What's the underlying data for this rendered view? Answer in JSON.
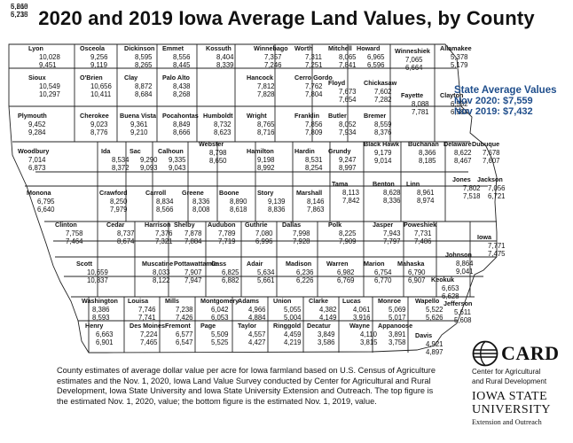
{
  "title": "2020 and 2019 Iowa Average Land Values, by County",
  "state_average": {
    "heading": "State Average Values",
    "nov_2020": "Nov 2020: $7,559",
    "nov_2019": "Nov 2019: $7,432"
  },
  "footnote": "County estimates of average dollar value per acre for Iowa farmland based on U.S. Census of Agriculture estimates and the Nov. 1, 2020, Iowa Land Value Survey conducted by Center for Agricultural and Rural Development, Iowa State University and Iowa State University Extension and Outreach. The top figure is the estimated Nov. 1, 2020, value; the bottom figure is the estimated Nov. 1, 2019, value.",
  "card_logo": {
    "name": "CARD",
    "line1": "Center for Agricultural",
    "line2": "and Rural Development",
    "mark_icon": "card-globe-icon"
  },
  "isu_logo": {
    "line1": "IOWA STATE",
    "line2": "UNIVERSITY",
    "line3": "Extension and Outreach"
  },
  "counties": [
    {
      "name": "Lyon",
      "v2020": "10,028",
      "v2019": "9,451"
    },
    {
      "name": "Osceola",
      "v2020": "9,256",
      "v2019": "9,119"
    },
    {
      "name": "Dickinson",
      "v2020": "8,595",
      "v2019": "8,265"
    },
    {
      "name": "Emmet",
      "v2020": "8,556",
      "v2019": "8,445"
    },
    {
      "name": "Kossuth",
      "v2020": "8,404",
      "v2019": "8,339"
    },
    {
      "name": "Winnebago",
      "v2020": "7,357",
      "v2019": "7,246"
    },
    {
      "name": "Worth",
      "v2020": "7,311",
      "v2019": "7,251"
    },
    {
      "name": "Mitchell",
      "v2020": "8,065",
      "v2019": "7,841"
    },
    {
      "name": "Howard",
      "v2020": "6,965",
      "v2019": "6,596"
    },
    {
      "name": "Winneshiek",
      "v2020": "7,065",
      "v2019": "6,664"
    },
    {
      "name": "Allamakee",
      "v2020": "5,378",
      "v2019": "5,179"
    },
    {
      "name": "Sioux",
      "v2020": "10,549",
      "v2019": "10,297"
    },
    {
      "name": "O'Brien",
      "v2020": "10,656",
      "v2019": "10,411"
    },
    {
      "name": "Clay",
      "v2020": "8,872",
      "v2019": "8,684"
    },
    {
      "name": "Palo Alto",
      "v2020": "8,438",
      "v2019": "8,268"
    },
    {
      "name": "Hancock",
      "v2020": "7,812",
      "v2019": "7,828"
    },
    {
      "name": "Cerro Gordo",
      "v2020": "7,762",
      "v2019": "7,804"
    },
    {
      "name": "Floyd",
      "v2020": "7,673",
      "v2019": "7,654"
    },
    {
      "name": "Chickasaw",
      "v2020": "7,602",
      "v2019": "7,282"
    },
    {
      "name": "Fayette",
      "v2020": "8,088",
      "v2019": "7,781"
    },
    {
      "name": "Clayton",
      "v2020": "6,532",
      "v2019": "6,584"
    },
    {
      "name": "Plymouth",
      "v2020": "9,452",
      "v2019": "9,284"
    },
    {
      "name": "Cherokee",
      "v2020": "9,023",
      "v2019": "8,776"
    },
    {
      "name": "Buena Vista",
      "v2020": "9,361",
      "v2019": "9,210"
    },
    {
      "name": "Pocahontas",
      "v2020": "8,849",
      "v2019": "8,666"
    },
    {
      "name": "Humboldt",
      "v2020": "8,732",
      "v2019": "8,623"
    },
    {
      "name": "Wright",
      "v2020": "8,765",
      "v2019": "8,716"
    },
    {
      "name": "Franklin",
      "v2020": "7,856",
      "v2019": "7,809"
    },
    {
      "name": "Butler",
      "v2020": "8,052",
      "v2019": "7,934"
    },
    {
      "name": "Bremer",
      "v2020": "8,559",
      "v2019": "8,376"
    },
    {
      "name": "Woodbury",
      "v2020": "7,014",
      "v2019": "6,873"
    },
    {
      "name": "Ida",
      "v2020": "8,534",
      "v2019": "8,372"
    },
    {
      "name": "Sac",
      "v2020": "9,290",
      "v2019": "9,093"
    },
    {
      "name": "Calhoun",
      "v2020": "9,335",
      "v2019": "9,043"
    },
    {
      "name": "Webster",
      "v2020": "8,798",
      "v2019": "8,650"
    },
    {
      "name": "Hamilton",
      "v2020": "9,198",
      "v2019": "8,992"
    },
    {
      "name": "Hardin",
      "v2020": "8,531",
      "v2019": "8,254"
    },
    {
      "name": "Grundy",
      "v2020": "9,247",
      "v2019": "8,997"
    },
    {
      "name": "Black Hawk",
      "v2020": "9,179",
      "v2019": "9,014"
    },
    {
      "name": "Buchanan",
      "v2020": "8,366",
      "v2019": "8,185"
    },
    {
      "name": "Delaware",
      "v2020": "8,622",
      "v2019": "8,467"
    },
    {
      "name": "Dubuque",
      "v2020": "7,678",
      "v2019": "7,607"
    },
    {
      "name": "Monona",
      "v2020": "6,795",
      "v2019": "6,640"
    },
    {
      "name": "Crawford",
      "v2020": "8,250",
      "v2019": "7,979"
    },
    {
      "name": "Carroll",
      "v2020": "8,834",
      "v2019": "8,566"
    },
    {
      "name": "Greene",
      "v2020": "8,336",
      "v2019": "8,008"
    },
    {
      "name": "Boone",
      "v2020": "8,890",
      "v2019": "8,618"
    },
    {
      "name": "Story",
      "v2020": "9,139",
      "v2019": "8,836"
    },
    {
      "name": "Marshall",
      "v2020": "8,146",
      "v2019": "7,863"
    },
    {
      "name": "Tama",
      "v2020": "8,113",
      "v2019": "7,842"
    },
    {
      "name": "Benton",
      "v2020": "8,628",
      "v2019": "8,336"
    },
    {
      "name": "Linn",
      "v2020": "8,961",
      "v2019": "8,974"
    },
    {
      "name": "Jones",
      "v2020": "7,802",
      "v2019": "7,518"
    },
    {
      "name": "Jackson",
      "v2020": "7,056",
      "v2019": "6,721"
    },
    {
      "name": "Clinton",
      "v2020": "7,758",
      "v2019": "7,464"
    },
    {
      "name": "Cedar",
      "v2020": "8,737",
      "v2019": "8,674"
    },
    {
      "name": "Harrison",
      "v2020": "7,376",
      "v2019": "7,321"
    },
    {
      "name": "Shelby",
      "v2020": "7,878",
      "v2019": "7,884"
    },
    {
      "name": "Audubon",
      "v2020": "7,789",
      "v2019": "7,719"
    },
    {
      "name": "Guthrie",
      "v2020": "7,080",
      "v2019": "6,996"
    },
    {
      "name": "Dallas",
      "v2020": "7,998",
      "v2019": "7,928"
    },
    {
      "name": "Polk",
      "v2020": "8,225",
      "v2019": "7,909"
    },
    {
      "name": "Jasper",
      "v2020": "7,943",
      "v2019": "7,797"
    },
    {
      "name": "Poweshiek",
      "v2020": "7,731",
      "v2019": "7,486"
    },
    {
      "name": "Iowa",
      "v2020": "7,771",
      "v2019": "7,475"
    },
    {
      "name": "Johnson",
      "v2020": "8,864",
      "v2019": "9,041"
    },
    {
      "name": "Scott",
      "v2020": "10,659",
      "v2019": "10,837"
    },
    {
      "name": "Muscatine",
      "v2020": "8,033",
      "v2019": "8,122"
    },
    {
      "name": "Pottawattamie",
      "v2020": "7,907",
      "v2019": "7,947"
    },
    {
      "name": "Cass",
      "v2020": "6,825",
      "v2019": "6,882"
    },
    {
      "name": "Adair",
      "v2020": "5,634",
      "v2019": "5,661"
    },
    {
      "name": "Madison",
      "v2020": "6,236",
      "v2019": "6,226"
    },
    {
      "name": "Warren",
      "v2020": "6,982",
      "v2019": "6,769"
    },
    {
      "name": "Marion",
      "v2020": "6,754",
      "v2019": "6,770"
    },
    {
      "name": "Mahaska",
      "v2020": "6,790",
      "v2019": "6,907"
    },
    {
      "name": "Keokuk",
      "v2020": "6,653",
      "v2019": "6,628"
    },
    {
      "name": "Washington",
      "v2020": "8,386",
      "v2019": "8,593"
    },
    {
      "name": "Louisa",
      "v2020": "7,746",
      "v2019": "7,741"
    },
    {
      "name": "Mills",
      "v2020": "7,238",
      "v2019": "7,426"
    },
    {
      "name": "Montgomery",
      "v2020": "6,042",
      "v2019": "6,053"
    },
    {
      "name": "Adams",
      "v2020": "4,966",
      "v2019": "4,884"
    },
    {
      "name": "Union",
      "v2020": "5,055",
      "v2019": "5,004"
    },
    {
      "name": "Clarke",
      "v2020": "4,382",
      "v2019": "4,149"
    },
    {
      "name": "Lucas",
      "v2020": "4,061",
      "v2019": "3,916"
    },
    {
      "name": "Monroe",
      "v2020": "5,069",
      "v2019": "5,017"
    },
    {
      "name": "Wapello",
      "v2020": "5,522",
      "v2019": "5,626"
    },
    {
      "name": "Jefferson",
      "v2020": "5,611",
      "v2019": "5,608"
    },
    {
      "name": "Henry",
      "v2020": "6,663",
      "v2019": "6,901"
    },
    {
      "name": "Des Moines",
      "v2020": "7,224",
      "v2019": "7,465"
    },
    {
      "name": "Fremont",
      "v2020": "6,577",
      "v2019": "6,547"
    },
    {
      "name": "Page",
      "v2020": "5,509",
      "v2019": "5,525"
    },
    {
      "name": "Taylor",
      "v2020": "4,557",
      "v2019": "4,427"
    },
    {
      "name": "Ringgold",
      "v2020": "4,459",
      "v2019": "4,219"
    },
    {
      "name": "Decatur",
      "v2020": "3,849",
      "v2019": "3,586"
    },
    {
      "name": "Wayne",
      "v2020": "4,110",
      "v2019": "3,815"
    },
    {
      "name": "Appanoose",
      "v2020": "3,891",
      "v2019": "3,758"
    },
    {
      "name": "Davis",
      "v2020": "4,921",
      "v2019": "4,897"
    },
    {
      "name": "Van Buren",
      "v2020": "5,260",
      "v2019": "5,215"
    },
    {
      "name": "Lee",
      "v2020": "6,618",
      "v2019": "6,738"
    }
  ]
}
